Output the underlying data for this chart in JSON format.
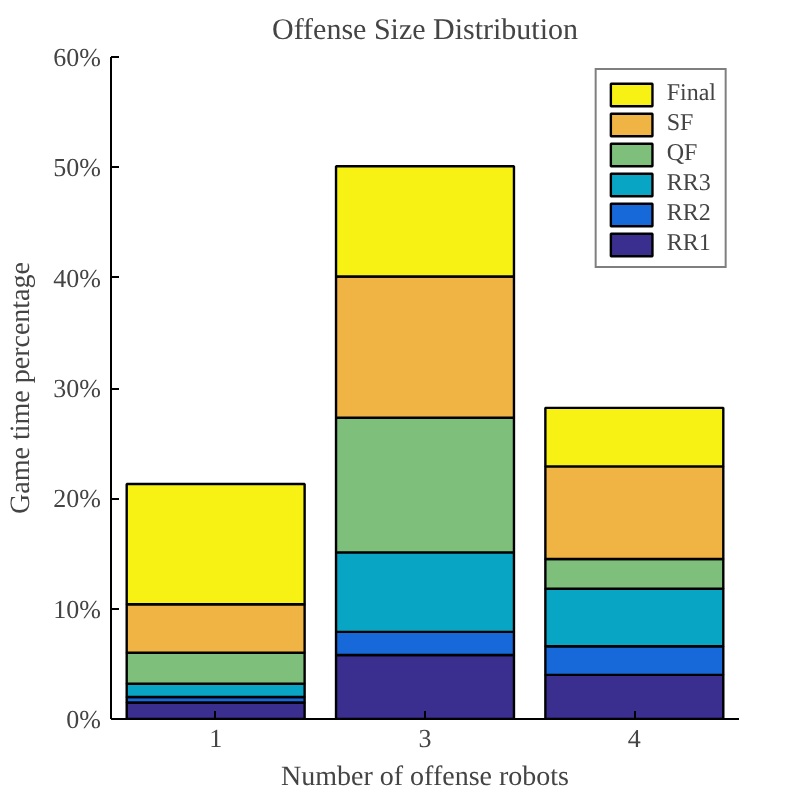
{
  "chart_data": {
    "type": "bar",
    "title": "Offense Size Distribution",
    "xlabel": "Number of offense robots",
    "ylabel": "Game time percentage",
    "categories": [
      "1",
      "3",
      "4"
    ],
    "stacked": true,
    "legend": "top right",
    "grid": false,
    "ylim": [
      0,
      60
    ],
    "yticks": [
      {
        "value": 0,
        "label": "0%"
      },
      {
        "value": 10,
        "label": "10%"
      },
      {
        "value": 20,
        "label": "20%"
      },
      {
        "value": 30,
        "label": "30%"
      },
      {
        "value": 40,
        "label": "40%"
      },
      {
        "value": 50,
        "label": "50%"
      },
      {
        "value": 60,
        "label": "60%"
      }
    ],
    "series": [
      {
        "name": "RR1",
        "color": "#3a2e8f",
        "values": [
          1.5,
          5.8,
          4.0
        ]
      },
      {
        "name": "RR2",
        "color": "#1769d9",
        "values": [
          0.5,
          2.1,
          2.6
        ]
      },
      {
        "name": "RR3",
        "color": "#08a6c4",
        "values": [
          1.2,
          7.2,
          5.2
        ]
      },
      {
        "name": "QF",
        "color": "#7dbf7b",
        "values": [
          2.8,
          12.2,
          2.7
        ]
      },
      {
        "name": "SF",
        "color": "#f0b445",
        "values": [
          4.4,
          12.8,
          8.4
        ]
      },
      {
        "name": "Final",
        "color": "#f8f214",
        "values": [
          10.9,
          10.0,
          5.3
        ]
      }
    ]
  }
}
